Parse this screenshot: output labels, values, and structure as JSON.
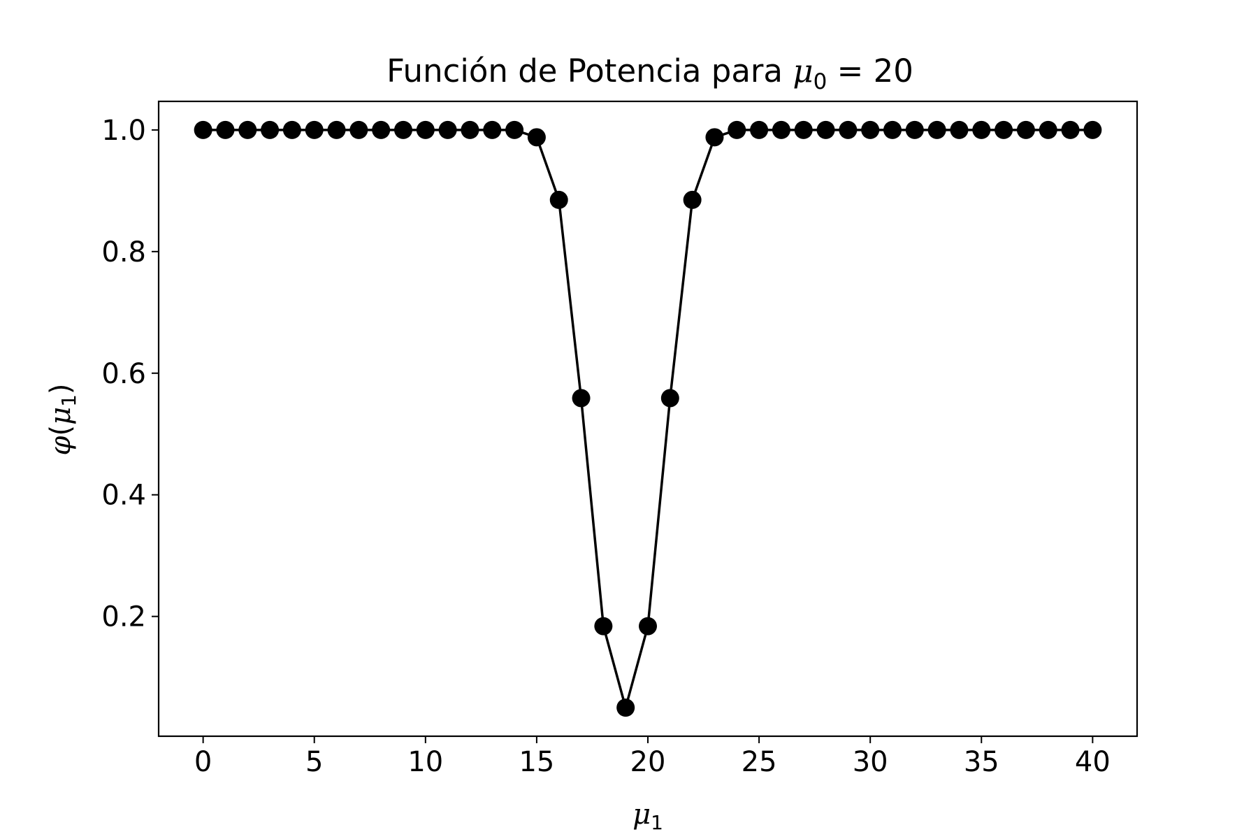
{
  "chart_data": {
    "type": "line",
    "title": "Función de Potencia para ",
    "title_math": {
      "symbol": "μ",
      "subscript": "0",
      "suffix": " = 20"
    },
    "xlabel": {
      "symbol": "μ",
      "subscript": "1"
    },
    "ylabel": {
      "symbol": "φ",
      "open": "(",
      "inner": "μ",
      "subscript": "1",
      "close": ")"
    },
    "xlim": [
      -2,
      42
    ],
    "ylim": [
      0.003,
      1.047
    ],
    "xticks": [
      0,
      5,
      10,
      15,
      20,
      25,
      30,
      35,
      40
    ],
    "xtick_labels": [
      "0",
      "5",
      "10",
      "15",
      "20",
      "25",
      "30",
      "35",
      "40"
    ],
    "yticks": [
      0.2,
      0.4,
      0.6,
      0.8,
      1.0
    ],
    "ytick_labels": [
      "0.2",
      "0.4",
      "0.6",
      "0.8",
      "1.0"
    ],
    "grid": false,
    "legend": false,
    "color": "#000000",
    "marker": "circle",
    "series": [
      {
        "x": [
          0,
          1,
          2,
          3,
          4,
          5,
          6,
          7,
          8,
          9,
          10,
          11,
          12,
          13,
          14,
          15,
          16,
          17,
          18,
          19,
          20,
          21,
          22,
          23,
          24,
          25,
          26,
          27,
          28,
          29,
          30,
          31,
          32,
          33,
          34,
          35,
          36,
          37,
          38,
          39,
          40
        ],
        "values": [
          1.0,
          1.0,
          1.0,
          1.0,
          1.0,
          1.0,
          1.0,
          1.0,
          1.0,
          1.0,
          1.0,
          1.0,
          1.0,
          1.0,
          1.0,
          0.988,
          0.885,
          0.559,
          0.184,
          0.05,
          0.184,
          0.559,
          0.885,
          0.988,
          1.0,
          1.0,
          1.0,
          1.0,
          1.0,
          1.0,
          1.0,
          1.0,
          1.0,
          1.0,
          1.0,
          1.0,
          1.0,
          1.0,
          1.0,
          1.0,
          1.0
        ]
      }
    ]
  }
}
